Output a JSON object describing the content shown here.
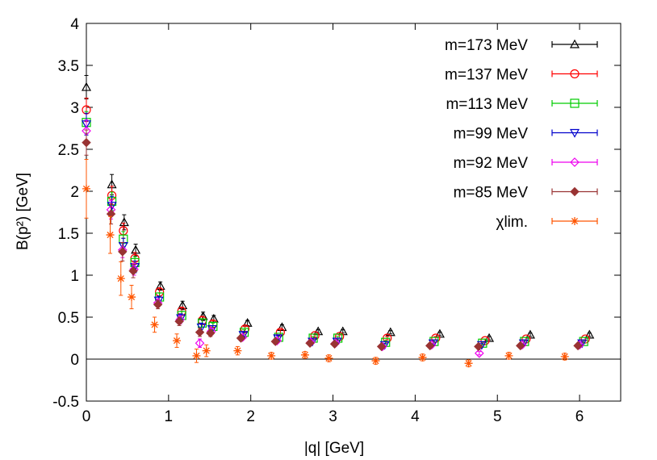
{
  "chart_data": {
    "type": "scatter",
    "xlabel": "|q| [GeV]",
    "ylabel": "B(p²) [GeV]",
    "xlim": [
      0,
      6.5
    ],
    "ylim": [
      -0.5,
      4
    ],
    "xticks": [
      "0",
      "1",
      "2",
      "3",
      "4",
      "5",
      "6"
    ],
    "yticks": [
      "-0.5",
      "0",
      "0.5",
      "1",
      "1.5",
      "2",
      "2.5",
      "3",
      "3.5",
      "4"
    ],
    "grid": false,
    "zero_line": true,
    "legend_position": "top-right",
    "series": [
      {
        "name": "m=173 MeV",
        "color": "#000000",
        "marker": "triangle-up",
        "x": [
          0.0,
          0.31,
          0.46,
          0.6,
          0.9,
          1.17,
          1.42,
          1.55,
          1.96,
          2.38,
          2.82,
          3.12,
          3.7,
          4.3,
          4.9,
          5.4,
          6.12
        ],
        "y": [
          3.24,
          2.08,
          1.63,
          1.3,
          0.87,
          0.64,
          0.51,
          0.48,
          0.43,
          0.38,
          0.33,
          0.33,
          0.32,
          0.3,
          0.25,
          0.29,
          0.29
        ],
        "err": [
          0.14,
          0.12,
          0.09,
          0.07,
          0.05,
          0.05,
          0.05,
          0.04,
          0.03,
          0.03,
          0.02,
          0.02,
          0.02,
          0.02,
          0.02,
          0.02,
          0.02
        ]
      },
      {
        "name": "m=137 MeV",
        "color": "#ff0000",
        "marker": "circle",
        "x": [
          0.0,
          0.31,
          0.45,
          0.59,
          0.89,
          1.16,
          1.41,
          1.54,
          1.93,
          2.36,
          2.78,
          3.08,
          3.66,
          4.25,
          4.85,
          5.35,
          6.07
        ],
        "y": [
          2.97,
          1.95,
          1.53,
          1.2,
          0.8,
          0.57,
          0.46,
          0.42,
          0.36,
          0.32,
          0.28,
          0.27,
          0.25,
          0.25,
          0.22,
          0.24,
          0.24
        ],
        "err": [
          0.14,
          0.11,
          0.09,
          0.07,
          0.05,
          0.05,
          0.05,
          0.04,
          0.03,
          0.03,
          0.02,
          0.02,
          0.02,
          0.02,
          0.02,
          0.02,
          0.02
        ]
      },
      {
        "name": "m=113 MeV",
        "color": "#00cc00",
        "marker": "square",
        "x": [
          0.0,
          0.31,
          0.45,
          0.59,
          0.89,
          1.16,
          1.41,
          1.54,
          1.92,
          2.34,
          2.76,
          3.06,
          3.64,
          4.23,
          4.82,
          5.33,
          6.05
        ],
        "y": [
          2.82,
          1.88,
          1.43,
          1.15,
          0.74,
          0.52,
          0.43,
          0.39,
          0.32,
          0.26,
          0.25,
          0.25,
          0.2,
          0.21,
          0.19,
          0.21,
          0.21
        ],
        "err": [
          0.13,
          0.11,
          0.09,
          0.07,
          0.05,
          0.05,
          0.05,
          0.04,
          0.03,
          0.03,
          0.02,
          0.02,
          0.02,
          0.02,
          0.02,
          0.02,
          0.02
        ]
      },
      {
        "name": "m=99 MeV",
        "color": "#0000cc",
        "marker": "triangle-down",
        "x": [
          0.0,
          0.31,
          0.45,
          0.59,
          0.88,
          1.15,
          1.4,
          1.53,
          1.91,
          2.33,
          2.75,
          3.05,
          3.63,
          4.22,
          4.81,
          5.32,
          6.03
        ],
        "y": [
          2.8,
          1.83,
          1.35,
          1.1,
          0.7,
          0.49,
          0.38,
          0.36,
          0.29,
          0.25,
          0.21,
          0.21,
          0.17,
          0.19,
          0.17,
          0.19,
          0.19
        ],
        "err": [
          0.13,
          0.11,
          0.09,
          0.07,
          0.05,
          0.05,
          0.05,
          0.04,
          0.03,
          0.03,
          0.02,
          0.02,
          0.02,
          0.02,
          0.02,
          0.02,
          0.02
        ]
      },
      {
        "name": "m=92 MeV",
        "color": "#ee00ee",
        "marker": "diamond",
        "x": [
          0.0,
          0.3,
          0.44,
          0.58,
          0.87,
          1.14,
          1.38,
          1.52,
          1.9,
          2.32,
          2.73,
          3.03,
          3.6,
          4.2,
          4.78,
          5.3,
          6.0
        ],
        "y": [
          2.72,
          1.78,
          1.3,
          1.07,
          0.67,
          0.47,
          0.19,
          0.33,
          0.26,
          0.22,
          0.2,
          0.19,
          0.15,
          0.17,
          0.07,
          0.17,
          0.17
        ],
        "err": [
          0.13,
          0.11,
          0.09,
          0.07,
          0.05,
          0.05,
          0.05,
          0.04,
          0.03,
          0.03,
          0.02,
          0.02,
          0.02,
          0.02,
          0.02,
          0.02,
          0.02
        ]
      },
      {
        "name": "m=85 MeV",
        "color": "#993333",
        "marker": "filled-diamond",
        "x": [
          0.0,
          0.3,
          0.44,
          0.57,
          0.87,
          1.13,
          1.38,
          1.51,
          1.88,
          2.3,
          2.72,
          3.02,
          3.59,
          4.18,
          4.77,
          5.28,
          5.98
        ],
        "y": [
          2.58,
          1.73,
          1.28,
          1.05,
          0.65,
          0.45,
          0.32,
          0.31,
          0.25,
          0.21,
          0.19,
          0.18,
          0.15,
          0.16,
          0.15,
          0.16,
          0.16
        ],
        "err": [
          0.15,
          0.12,
          0.11,
          0.08,
          0.05,
          0.05,
          0.05,
          0.04,
          0.03,
          0.03,
          0.02,
          0.02,
          0.02,
          0.02,
          0.02,
          0.02,
          0.02
        ]
      },
      {
        "name": "χlim.",
        "color": "#ff5500",
        "marker": "star",
        "x": [
          0.0,
          0.29,
          0.42,
          0.55,
          0.83,
          1.1,
          1.34,
          1.46,
          1.84,
          2.25,
          2.66,
          2.95,
          3.52,
          4.09,
          4.65,
          5.14,
          5.82
        ],
        "y": [
          2.03,
          1.48,
          0.96,
          0.74,
          0.41,
          0.22,
          0.04,
          0.1,
          0.1,
          0.04,
          0.05,
          0.01,
          -0.02,
          0.02,
          -0.05,
          0.04,
          0.03
        ],
        "err": [
          0.35,
          0.22,
          0.2,
          0.14,
          0.09,
          0.08,
          0.08,
          0.07,
          0.05,
          0.04,
          0.04,
          0.04,
          0.04,
          0.04,
          0.04,
          0.04,
          0.04
        ]
      }
    ]
  }
}
